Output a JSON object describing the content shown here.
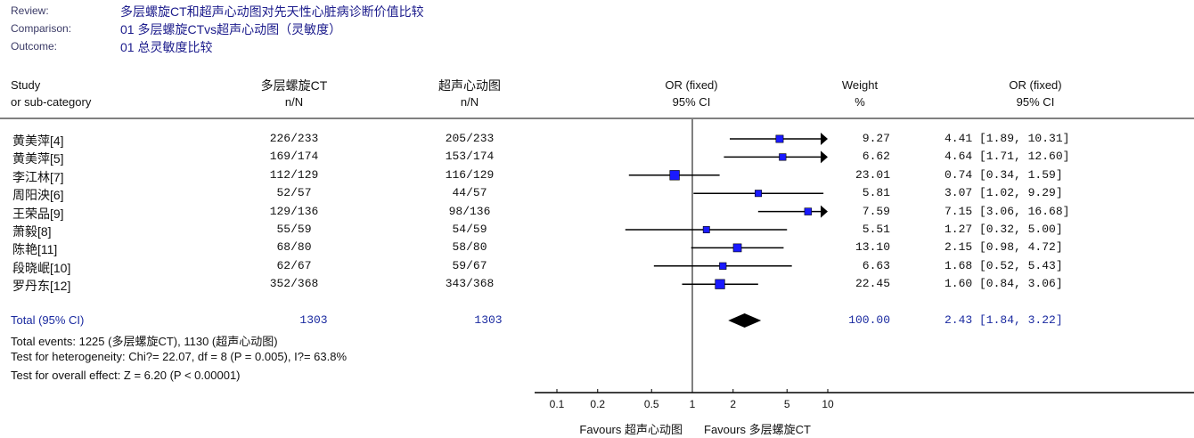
{
  "header": {
    "review_label": "Review:",
    "review": "多层螺旋CT和超声心动图对先天性心脏病诊断价值比较",
    "comparison_label": "Comparison:",
    "comparison": "01 多层螺旋CTvs超声心动图（灵敏度）",
    "outcome_label": "Outcome:",
    "outcome": "01 总灵敏度比较"
  },
  "columns": {
    "study": "Study",
    "study_sub": "or sub-category",
    "group1": "多层螺旋CT",
    "group1_sub": "n/N",
    "group2": "超声心动图",
    "group2_sub": "n/N",
    "or_plot": "OR (fixed)",
    "or_plot_sub": "95% CI",
    "weight": "Weight",
    "weight_sub": "%",
    "or": "OR (fixed)",
    "or_sub": "95% CI"
  },
  "chart_data": {
    "type": "forest",
    "scale": "log",
    "xlim": [
      0.1,
      10
    ],
    "ticks": [
      "0.1",
      "0.2",
      "0.5",
      "1",
      "2",
      "5",
      "10"
    ],
    "tick_values": [
      0.1,
      0.2,
      0.5,
      1,
      2,
      5,
      10
    ],
    "xlabel_left": "Favours 超声心动图",
    "xlabel_right": "Favours 多层螺旋CT",
    "studies": [
      {
        "name": "黄美萍[4]",
        "g1": "226/233",
        "g2": "205/233",
        "weight": "9.27",
        "or": 4.41,
        "lo": 1.89,
        "hi": 10.31,
        "or_text": "4.41 [1.89, 10.31]"
      },
      {
        "name": "黄美萍[5]",
        "g1": "169/174",
        "g2": "153/174",
        "weight": "6.62",
        "or": 4.64,
        "lo": 1.71,
        "hi": 12.6,
        "or_text": "4.64 [1.71, 12.60]"
      },
      {
        "name": "李江林[7]",
        "g1": "112/129",
        "g2": "116/129",
        "weight": "23.01",
        "or": 0.74,
        "lo": 0.34,
        "hi": 1.59,
        "or_text": "0.74 [0.34, 1.59]"
      },
      {
        "name": "周阳泱[6]",
        "g1": "52/57",
        "g2": "44/57",
        "weight": "5.81",
        "or": 3.07,
        "lo": 1.02,
        "hi": 9.29,
        "or_text": "3.07 [1.02, 9.29]"
      },
      {
        "name": "王荣品[9]",
        "g1": "129/136",
        "g2": "98/136",
        "weight": "7.59",
        "or": 7.15,
        "lo": 3.06,
        "hi": 16.68,
        "or_text": "7.15 [3.06, 16.68]"
      },
      {
        "name": "萧毅[8]",
        "g1": "55/59",
        "g2": "54/59",
        "weight": "5.51",
        "or": 1.27,
        "lo": 0.32,
        "hi": 5.0,
        "or_text": "1.27 [0.32, 5.00]"
      },
      {
        "name": "陈艳[11]",
        "g1": "68/80",
        "g2": "58/80",
        "weight": "13.10",
        "or": 2.15,
        "lo": 0.98,
        "hi": 4.72,
        "or_text": "2.15 [0.98, 4.72]"
      },
      {
        "name": "段晓岷[10]",
        "g1": "62/67",
        "g2": "59/67",
        "weight": "6.63",
        "or": 1.68,
        "lo": 0.52,
        "hi": 5.43,
        "or_text": "1.68 [0.52, 5.43]"
      },
      {
        "name": "罗丹东[12]",
        "g1": "352/368",
        "g2": "343/368",
        "weight": "22.45",
        "or": 1.6,
        "lo": 0.84,
        "hi": 3.06,
        "or_text": "1.60 [0.84, 3.06]"
      }
    ],
    "total": {
      "label": "Total (95% CI)",
      "g1": "1303",
      "g2": "1303",
      "weight": "100.00",
      "or": 2.43,
      "lo": 1.84,
      "hi": 3.22,
      "or_text": "2.43 [1.84, 3.22]"
    },
    "footnotes": [
      "Total events: 1225 (多层螺旋CT), 1130 (超声心动图)",
      "Test for heterogeneity: Chi?= 22.07, df = 8 (P = 0.005), I?= 63.8%",
      "Test for overall effect: Z = 6.20 (P < 0.00001)"
    ],
    "colors": {
      "square": "#1a1aff",
      "line": "#000000",
      "total_text": "#1a2aa0"
    }
  }
}
